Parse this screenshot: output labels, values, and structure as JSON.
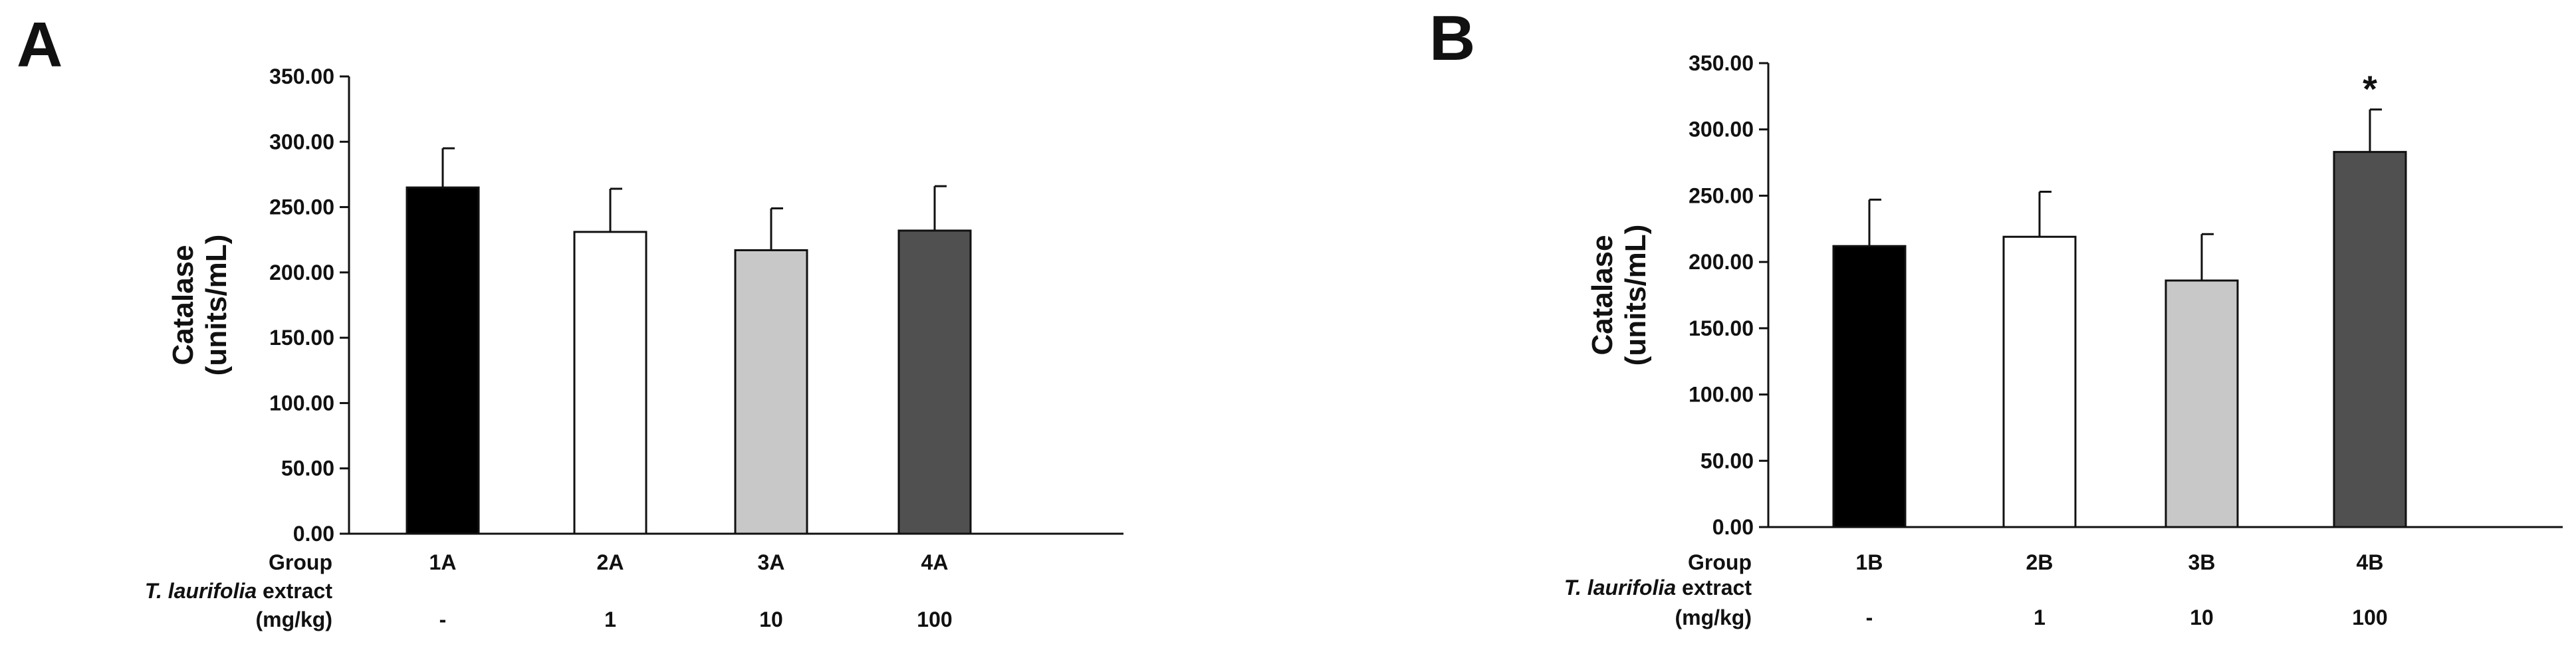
{
  "chart_data": [
    {
      "panel": "A",
      "type": "bar",
      "ylabel_line1": "Catalase",
      "ylabel_line2": "(units/mL)",
      "ylim": [
        0,
        350
      ],
      "yticks": [
        "0.00",
        "50.00",
        "100.00",
        "150.00",
        "200.00",
        "250.00",
        "300.00",
        "350.00"
      ],
      "row_labels": {
        "group": "Group",
        "extract_italic": "T. laurifolia",
        "extract_rest": " extract",
        "dose_unit": "(mg/kg)"
      },
      "categories": [
        "1A",
        "2A",
        "3A",
        "4A"
      ],
      "doses": [
        "-",
        "1",
        "10",
        "100"
      ],
      "values": [
        265,
        231,
        217,
        232
      ],
      "errors": [
        30,
        33,
        32,
        34
      ],
      "fills": [
        "#000000",
        "#ffffff",
        "#c8c8c8",
        "#505050"
      ],
      "annotations": [
        "",
        "",
        "",
        ""
      ]
    },
    {
      "panel": "B",
      "type": "bar",
      "ylabel_line1": "Catalase",
      "ylabel_line2": "(units/mL)",
      "ylim": [
        0,
        350
      ],
      "yticks": [
        "0.00",
        "50.00",
        "100.00",
        "150.00",
        "200.00",
        "250.00",
        "300.00",
        "350.00"
      ],
      "row_labels": {
        "group": "Group",
        "extract_italic": "T. laurifolia",
        "extract_rest": " extract",
        "dose_unit": "(mg/kg)"
      },
      "categories": [
        "1B",
        "2B",
        "3B",
        "4B"
      ],
      "doses": [
        "-",
        "1",
        "10",
        "100"
      ],
      "values": [
        212,
        219,
        186,
        283
      ],
      "errors": [
        35,
        34,
        35,
        32
      ],
      "fills": [
        "#000000",
        "#ffffff",
        "#c8c8c8",
        "#505050"
      ],
      "annotations": [
        "",
        "",
        "",
        "*"
      ]
    }
  ]
}
